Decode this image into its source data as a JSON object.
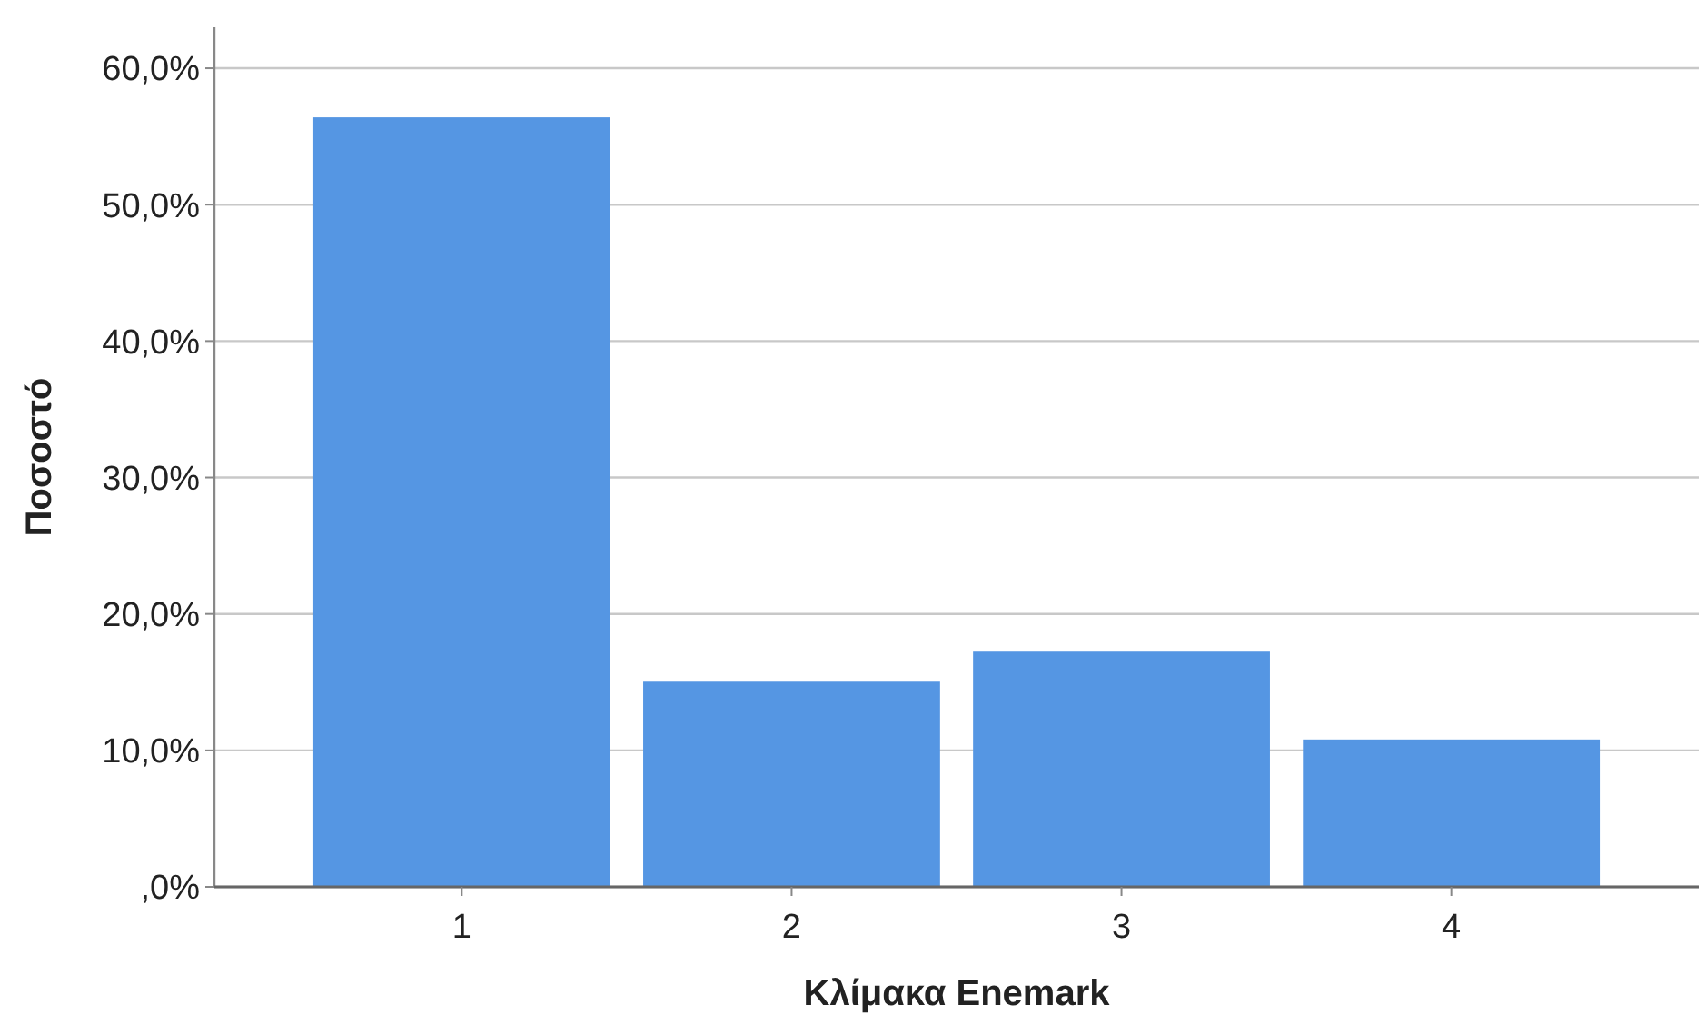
{
  "chart_data": {
    "type": "bar",
    "xlabel": "Κλίμακα Enemark",
    "ylabel": "Ποσοστό",
    "categories": [
      "1",
      "2",
      "3",
      "4"
    ],
    "values": [
      56.4,
      15.1,
      17.3,
      10.8
    ],
    "color": "#5596e3",
    "ylim": [
      0,
      63
    ],
    "yticks": [
      {
        "value": 0,
        "label": ",0%"
      },
      {
        "value": 10,
        "label": "10,0%"
      },
      {
        "value": 20,
        "label": "20,0%"
      },
      {
        "value": 30,
        "label": "30,0%"
      },
      {
        "value": 40,
        "label": "40,0%"
      },
      {
        "value": 50,
        "label": "50,0%"
      },
      {
        "value": 60,
        "label": "60,0%"
      }
    ],
    "grid": "y"
  }
}
